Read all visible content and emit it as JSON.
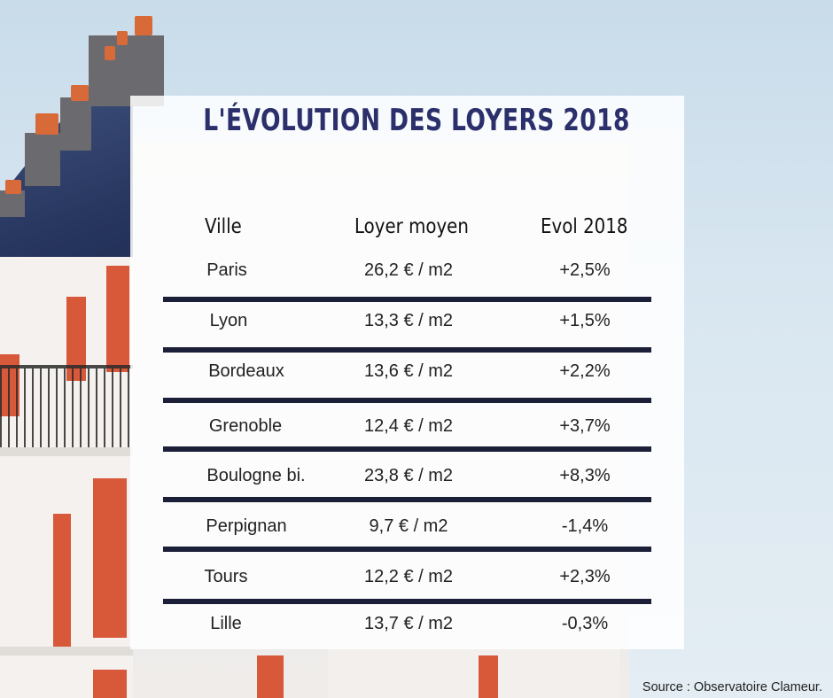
{
  "title": "L'ÉVOLUTION DES LOYERS 2018",
  "headers": {
    "city": "Ville",
    "rent": "Loyer moyen",
    "evol": "Evol 2018"
  },
  "rows": [
    {
      "city": "Paris",
      "rent": "26,2 € / m2",
      "evol": "+2,5%"
    },
    {
      "city": "Lyon",
      "rent": "13,3 € / m2",
      "evol": "+1,5%"
    },
    {
      "city": "Bordeaux",
      "rent": "13,6 € / m2",
      "evol": "+2,2%"
    },
    {
      "city": "Grenoble",
      "rent": "12,4 € / m2",
      "evol": "+3,7%"
    },
    {
      "city": "Boulogne bi.",
      "rent": "23,8 € / m2",
      "evol": "+8,3%"
    },
    {
      "city": "Perpignan",
      "rent": "9,7 € / m2",
      "evol": "-1,4%"
    },
    {
      "city": "Tours",
      "rent": "12,2 € / m2",
      "evol": "+2,3%"
    },
    {
      "city": "Lille",
      "rent": "13,7 € / m2",
      "evol": "-0,3%"
    }
  ],
  "source": "Source : Observatoire Clameur.",
  "colors": {
    "title": "#2b2f6b",
    "rule": "#1c1f38"
  }
}
